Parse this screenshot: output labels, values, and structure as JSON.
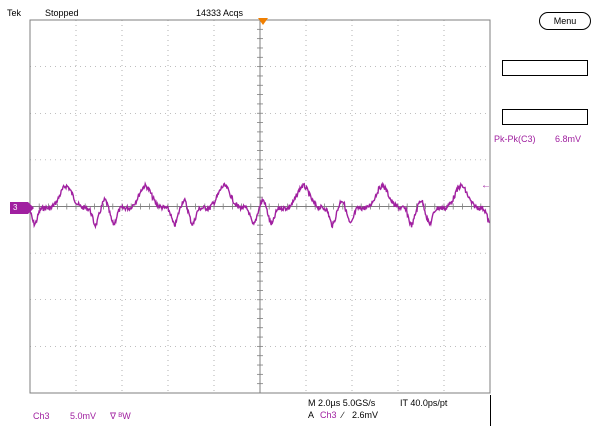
{
  "header": {
    "brand": "Tek",
    "status": "Stopped",
    "acquisitions": "14333 Acqs"
  },
  "menu": {
    "label": "Menu"
  },
  "measurement": {
    "label": "Pk-Pk(C3)",
    "value": "6.8mV"
  },
  "channel_marker": {
    "label": "3"
  },
  "footer": {
    "channel": "Ch3",
    "scale": "5.0mV",
    "coupling": "∇ ᴮW",
    "timebase": "M 2.0µs 5.0GS/s",
    "interval": "IT 40.0ps/pt",
    "trigger_prefix": "A",
    "trigger_channel": "Ch3",
    "trigger_slope": "∕",
    "trigger_level": "2.6mV"
  },
  "colors": {
    "trace": "#a020a0",
    "grid": "#7f7f7f",
    "trigger_marker": "#f07f00"
  }
}
